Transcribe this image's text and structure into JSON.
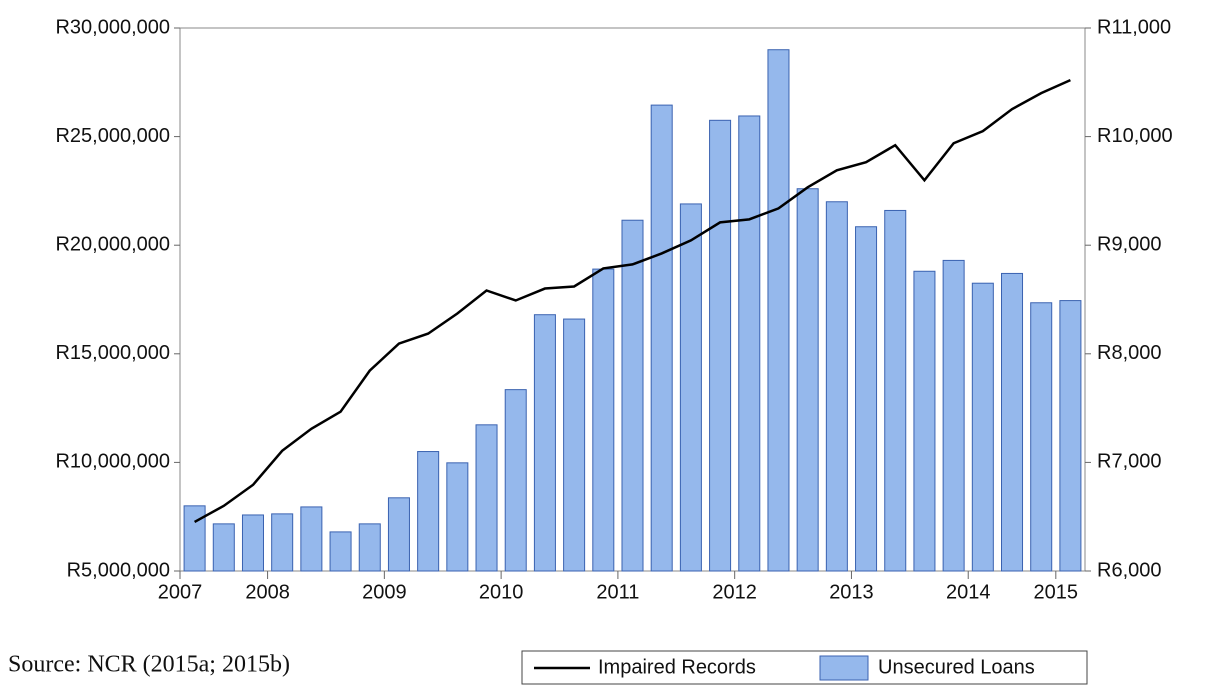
{
  "chart_data": {
    "type": "bar-line",
    "source": "Source: NCR (2015a; 2015b)",
    "categories": [
      "2007",
      null,
      null,
      "2008",
      null,
      null,
      null,
      "2009",
      null,
      null,
      null,
      "2010",
      null,
      null,
      null,
      "2011",
      null,
      null,
      null,
      "2012",
      null,
      null,
      null,
      "2013",
      null,
      null,
      null,
      "2014",
      null,
      null,
      "2015"
    ],
    "series": [
      {
        "name": "Unsecured Loans",
        "type": "bar",
        "color": "#95b8ec",
        "edge": "#3a62b0",
        "values": [
          8000000,
          7170000,
          7580000,
          7630000,
          7950000,
          6800000,
          7170000,
          8370000,
          10500000,
          9980000,
          11730000,
          13350000,
          16800000,
          16600000,
          18900000,
          21150000,
          26450000,
          21900000,
          25750000,
          25950000,
          29000000,
          22600000,
          22000000,
          20850000,
          21600000,
          18800000,
          19300000,
          18250000,
          18700000,
          17350000,
          17450000
        ]
      },
      {
        "name": "Impaired Records",
        "type": "line",
        "color": "#000000",
        "axis": "y2",
        "values": [
          6452,
          6600,
          6793,
          7107,
          7310,
          7467,
          7845,
          8094,
          8186,
          8371,
          8583,
          8491,
          8601,
          8620,
          8786,
          8823,
          8924,
          9044,
          9210,
          9238,
          9339,
          9533,
          9690,
          9764,
          9921,
          9598,
          9939,
          10050,
          10253,
          10400,
          10520
        ]
      }
    ],
    "ylim": [
      5000000,
      30000000
    ],
    "yticks": [
      {
        "value": 5000000,
        "label": "R5,000,000"
      },
      {
        "value": 10000000,
        "label": "R10,000,000"
      },
      {
        "value": 15000000,
        "label": "R15,000,000"
      },
      {
        "value": 20000000,
        "label": "R20,000,000"
      },
      {
        "value": 25000000,
        "label": "R25,000,000"
      },
      {
        "value": 30000000,
        "label": "R30,000,000"
      }
    ],
    "y2lim": [
      6000,
      11000
    ],
    "y2ticks": [
      {
        "value": 6000,
        "label": "R6,000"
      },
      {
        "value": 7000,
        "label": "R7,000"
      },
      {
        "value": 8000,
        "label": "R8,000"
      },
      {
        "value": 9000,
        "label": "R9,000"
      },
      {
        "value": 10000,
        "label": "R10,000"
      },
      {
        "value": 11000,
        "label": "R11,000"
      }
    ],
    "legend": "bottom-right"
  }
}
